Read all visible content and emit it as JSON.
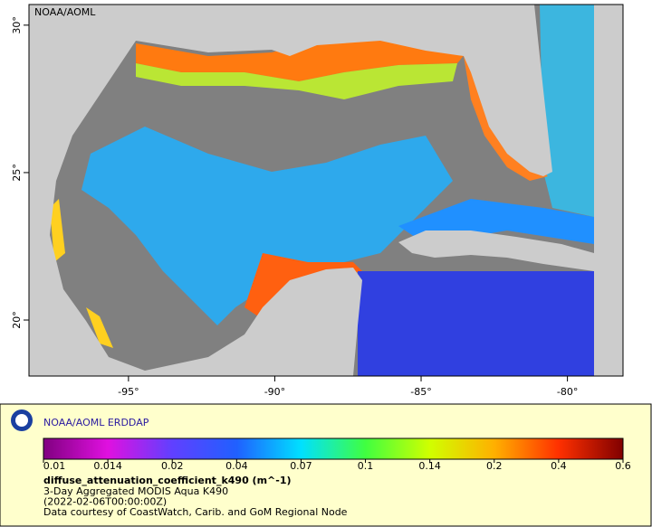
{
  "map": {
    "title": "NOAA/AOML",
    "xlim": [
      -98.4,
      -78.1
    ],
    "ylim": [
      18.1,
      30.7
    ],
    "xticks": [
      {
        "value": -95,
        "label": "-95°"
      },
      {
        "value": -90,
        "label": "-90°"
      },
      {
        "value": -85,
        "label": "-85°"
      },
      {
        "value": -80,
        "label": "-80°"
      }
    ],
    "yticks": [
      {
        "value": 20,
        "label": "20°"
      },
      {
        "value": 25,
        "label": "25°"
      },
      {
        "value": 30,
        "label": "30°"
      }
    ],
    "land_color": "#cccccc",
    "nodata_color": "#808080"
  },
  "colorbar": {
    "ticks": [
      0.01,
      0.014,
      0.02,
      0.04,
      0.07,
      0.1,
      0.14,
      0.2,
      0.4,
      0.6
    ],
    "colors": [
      "#800080",
      "#e010e0",
      "#6040ff",
      "#2060ff",
      "#00e0ff",
      "#40ff40",
      "#d0ff00",
      "#ffb000",
      "#ff3000",
      "#800000"
    ]
  },
  "footer": {
    "brand": "NOAA/AOML ERDDAP",
    "variable": "diffuse_attenuation_coefficient_k490 (m^-1)",
    "lines": [
      "3-Day Aggregated MODIS Aqua K490",
      "(2022-02-06T00:00:00Z)",
      "Data courtesy of CoastWatch, Carib. and GoM Regional Node"
    ]
  }
}
